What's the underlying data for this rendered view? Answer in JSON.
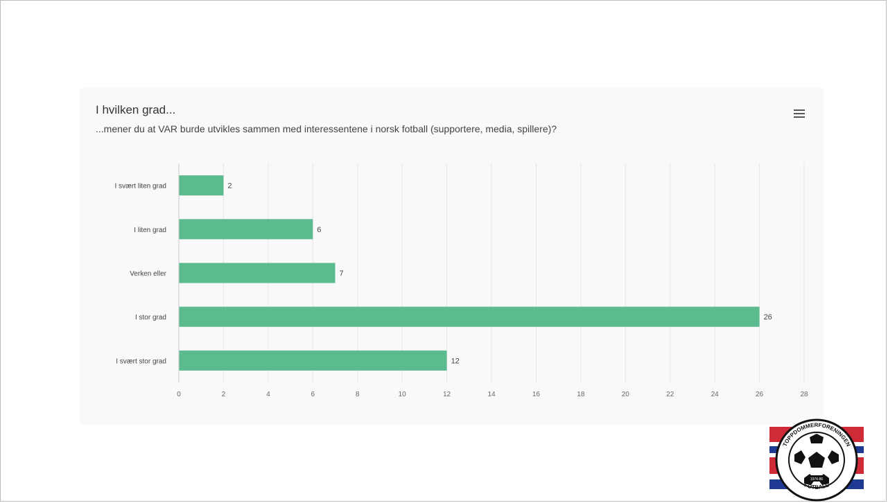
{
  "chart_data": {
    "type": "bar",
    "orientation": "horizontal",
    "title": "I hvilken grad...",
    "subtitle": "...mener du at VAR burde utvikles sammen med interessentene i norsk fotball (supportere, media, spillere)?",
    "categories": [
      "I svært liten grad",
      "I liten grad",
      "Verken eller",
      "I stor grad",
      "I svært stor grad"
    ],
    "values": [
      2,
      6,
      7,
      26,
      12
    ],
    "data_labels": [
      "2",
      "6",
      "7",
      "26",
      "12"
    ],
    "xlim": [
      0,
      28
    ],
    "x_ticks": [
      "0",
      "2",
      "4",
      "6",
      "8",
      "10",
      "12",
      "14",
      "16",
      "18",
      "20",
      "22",
      "24",
      "26",
      "28"
    ],
    "grid": "vertical",
    "bar_color": "#5cba8f",
    "legend": "none"
  },
  "menu": {
    "icon": "hamburger-menu-icon"
  },
  "logo": {
    "icon": "referee-association-logo",
    "text_top": "TOPPDOMMERFORENINGEN",
    "text_bottom": "FOTBALL",
    "text_year": "1974-86",
    "colors": [
      "#ce2b37",
      "#1f3a93",
      "#ffffff",
      "#000000"
    ]
  }
}
